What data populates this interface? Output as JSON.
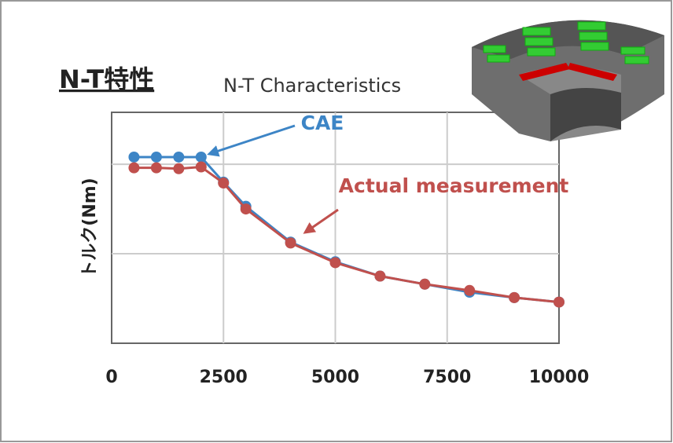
{
  "chart_data": {
    "type": "line",
    "title": "N-T特性",
    "subtitle": "N-T Characteristics",
    "y_label": "トルク(Nm)",
    "x": [
      500,
      1000,
      1500,
      2000,
      2500,
      3000,
      4000,
      5000,
      6000,
      7000,
      8000,
      9000,
      10000
    ],
    "series": [
      {
        "name": "CAE",
        "color": "#3d85c6",
        "values": [
          2.08,
          2.08,
          2.08,
          2.08,
          1.8,
          1.53,
          1.13,
          0.91,
          0.75,
          0.66,
          0.57,
          0.51,
          0.46
        ]
      },
      {
        "name": "Actual measurement",
        "color": "#c0504d",
        "values": [
          1.96,
          1.96,
          1.95,
          1.97,
          1.79,
          1.5,
          1.12,
          0.9,
          0.75,
          0.66,
          0.59,
          0.51,
          0.46
        ]
      }
    ],
    "xlim": [
      0,
      10000
    ],
    "xticks": [
      0,
      2500,
      5000,
      7500,
      10000
    ],
    "ylim": [
      0,
      2.58
    ],
    "ygrid": [
      1,
      2
    ],
    "grid": true
  }
}
